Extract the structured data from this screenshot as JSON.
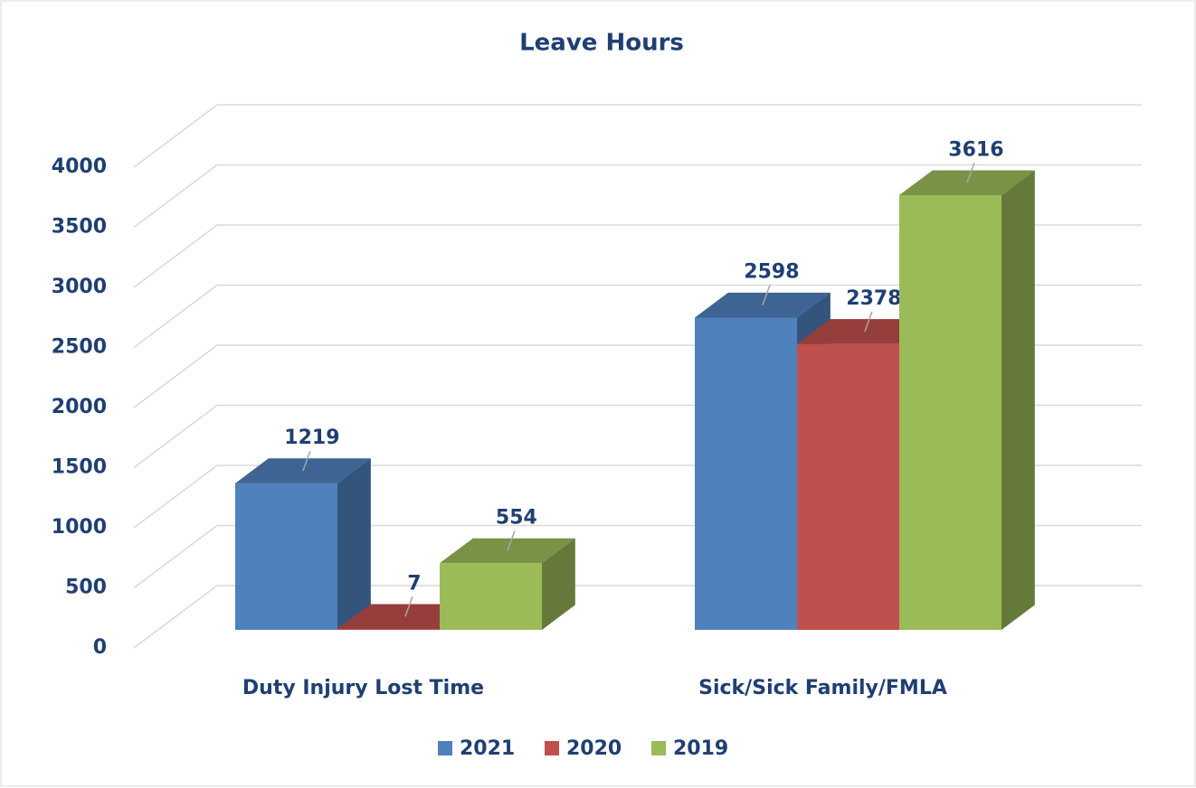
{
  "chart_data": {
    "type": "bar3d",
    "title": "Leave Hours",
    "categories": [
      "Duty Injury Lost Time",
      "Sick/Sick Family/FMLA"
    ],
    "series": [
      {
        "name": "2021",
        "color": "#4f81bd",
        "values": [
          1219,
          2598
        ]
      },
      {
        "name": "2020",
        "color": "#c0504d",
        "values": [
          7,
          2378
        ]
      },
      {
        "name": "2019",
        "color": "#9bbb59",
        "values": [
          554,
          3616
        ]
      }
    ],
    "ylim": [
      0,
      4000
    ],
    "yticks": [
      0,
      500,
      1000,
      1500,
      2000,
      2500,
      3000,
      3500,
      4000
    ],
    "grid": true,
    "legend": "bottom"
  }
}
